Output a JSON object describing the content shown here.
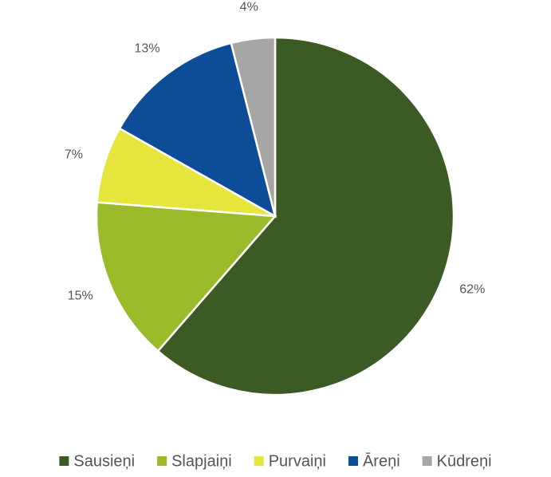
{
  "chart_data": {
    "type": "pie",
    "categories": [
      "Sausieņi",
      "Slapjaiņi",
      "Purvaiņi",
      "Āreņi",
      "Kūdreņi"
    ],
    "values": [
      62,
      15,
      7,
      13,
      4
    ],
    "value_labels": [
      "62%",
      "15%",
      "7%",
      "13%",
      "4%"
    ],
    "colors": [
      "#3b5a24",
      "#9bbb2b",
      "#e6e63c",
      "#0d4d98",
      "#a6a6a6"
    ],
    "start_angle": 0,
    "direction": "clockwise",
    "legend": "bottom"
  }
}
